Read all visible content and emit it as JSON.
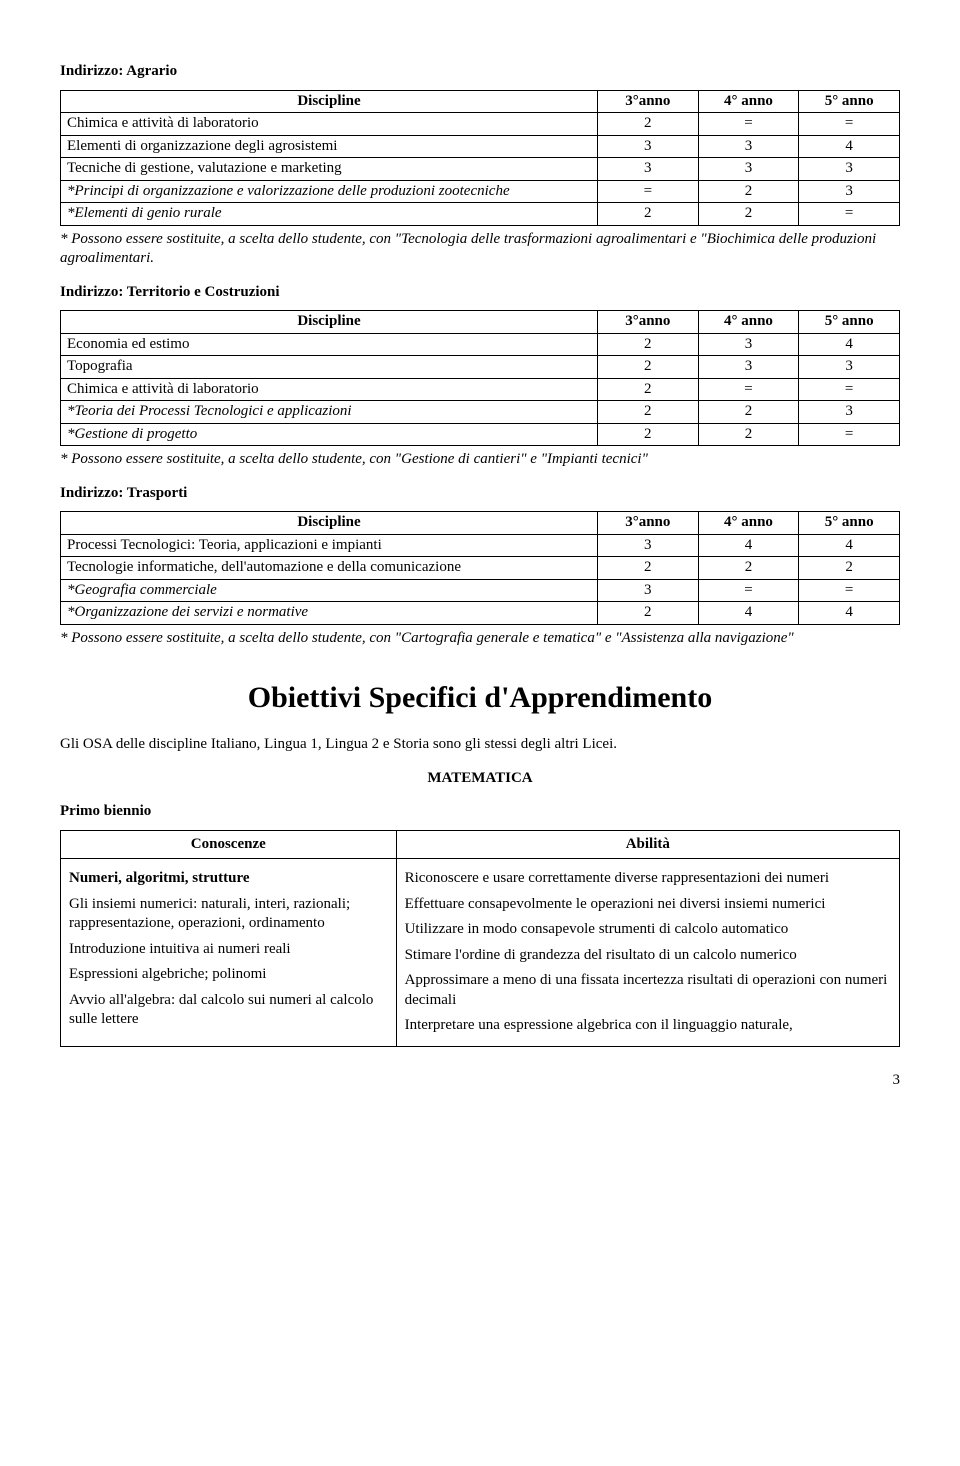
{
  "agrario": {
    "heading": "Indirizzo: Agrario",
    "headers": [
      "Discipline",
      "3°anno",
      "4° anno",
      "5° anno"
    ],
    "rows": [
      {
        "label": "Chimica e attività di laboratorio",
        "c3": "2",
        "c4": "=",
        "c5": "=",
        "italic": false
      },
      {
        "label": "Elementi di organizzazione degli agrosistemi",
        "c3": "3",
        "c4": "3",
        "c5": "4",
        "italic": false
      },
      {
        "label": "Tecniche di gestione, valutazione e marketing",
        "c3": "3",
        "c4": "3",
        "c5": "3",
        "italic": false
      },
      {
        "label": "*Principi di organizzazione e valorizzazione delle produzioni zootecniche",
        "c3": "=",
        "c4": "2",
        "c5": "3",
        "italic": true
      },
      {
        "label": "*Elementi di genio rurale",
        "c3": "2",
        "c4": "2",
        "c5": "=",
        "italic": true
      }
    ],
    "note": "* Possono essere sostituite, a scelta dello studente, con \"Tecnologia delle trasformazioni agroalimentari e \"Biochimica delle produzioni agroalimentari."
  },
  "territorio": {
    "heading": "Indirizzo: Territorio e Costruzioni",
    "headers": [
      "Discipline",
      "3°anno",
      "4° anno",
      "5° anno"
    ],
    "rows": [
      {
        "label": "Economia ed estimo",
        "c3": "2",
        "c4": "3",
        "c5": "4",
        "italic": false
      },
      {
        "label": "Topografia",
        "c3": "2",
        "c4": "3",
        "c5": "3",
        "italic": false
      },
      {
        "label": "Chimica e attività di laboratorio",
        "c3": "2",
        "c4": "=",
        "c5": "=",
        "italic": false
      },
      {
        "label": "*Teoria dei Processi Tecnologici e applicazioni",
        "c3": "2",
        "c4": "2",
        "c5": "3",
        "italic": true
      },
      {
        "label": "*Gestione di progetto",
        "c3": "2",
        "c4": "2",
        "c5": "=",
        "italic": true
      }
    ],
    "note": "* Possono essere sostituite, a scelta dello studente, con \"Gestione di cantieri\" e \"Impianti tecnici\""
  },
  "trasporti": {
    "heading": "Indirizzo: Trasporti",
    "headers": [
      "Discipline",
      "3°anno",
      "4° anno",
      "5° anno"
    ],
    "rows": [
      {
        "label": "Processi Tecnologici: Teoria, applicazioni e impianti",
        "c3": "3",
        "c4": "4",
        "c5": "4",
        "italic": false
      },
      {
        "label": "Tecnologie informatiche, dell'automazione e della comunicazione",
        "c3": "2",
        "c4": "2",
        "c5": "2",
        "italic": false
      },
      {
        "label": "*Geografia commerciale",
        "c3": "3",
        "c4": "=",
        "c5": "=",
        "italic": true
      },
      {
        "label": "*Organizzazione dei servizi e normative",
        "c3": "2",
        "c4": "4",
        "c5": "4",
        "italic": true
      }
    ],
    "note": "* Possono essere sostituite, a scelta dello studente, con \"Cartografia generale e tematica\" e \"Assistenza alla navigazione\""
  },
  "bigTitle": "Obiettivi  Specifici d'Apprendimento",
  "osaPara": "Gli OSA delle discipline Italiano, Lingua 1, Lingua 2 e Storia sono gli stessi degli altri Licei.",
  "subjectHeading": "MATEMATICA",
  "biennioHeading": "Primo biennio",
  "twoCol": {
    "leftHeader": "Conoscenze",
    "rightHeader": "Abilità",
    "leftParas": [
      {
        "text": "Numeri, algoritmi, strutture",
        "bold": true
      },
      {
        "text": "Gli insiemi numerici: naturali, interi, razionali; rappresentazione, operazioni, ordinamento",
        "bold": false
      },
      {
        "text": "Introduzione intuitiva ai numeri reali",
        "bold": false
      },
      {
        "text": "Espressioni algebriche; polinomi",
        "bold": false
      },
      {
        "text": "Avvio all'algebra: dal calcolo sui numeri al calcolo sulle lettere",
        "bold": false
      }
    ],
    "rightParas": [
      {
        "text": "Riconoscere e usare correttamente  diverse rappresentazioni dei numeri",
        "bold": false
      },
      {
        "text": "Effettuare consapevolmente le operazioni nei diversi insiemi numerici",
        "bold": false
      },
      {
        "text": "Utilizzare in modo consapevole strumenti di calcolo automatico",
        "bold": false
      },
      {
        "text": "Stimare l'ordine di grandezza del risultato di un calcolo numerico",
        "bold": false
      },
      {
        "text": "Approssimare a meno di una fissata incertezza risultati di operazioni con numeri decimali",
        "bold": false
      },
      {
        "text": "Interpretare una espressione algebrica con il linguaggio naturale,",
        "bold": false
      }
    ]
  },
  "pageNumber": "3"
}
